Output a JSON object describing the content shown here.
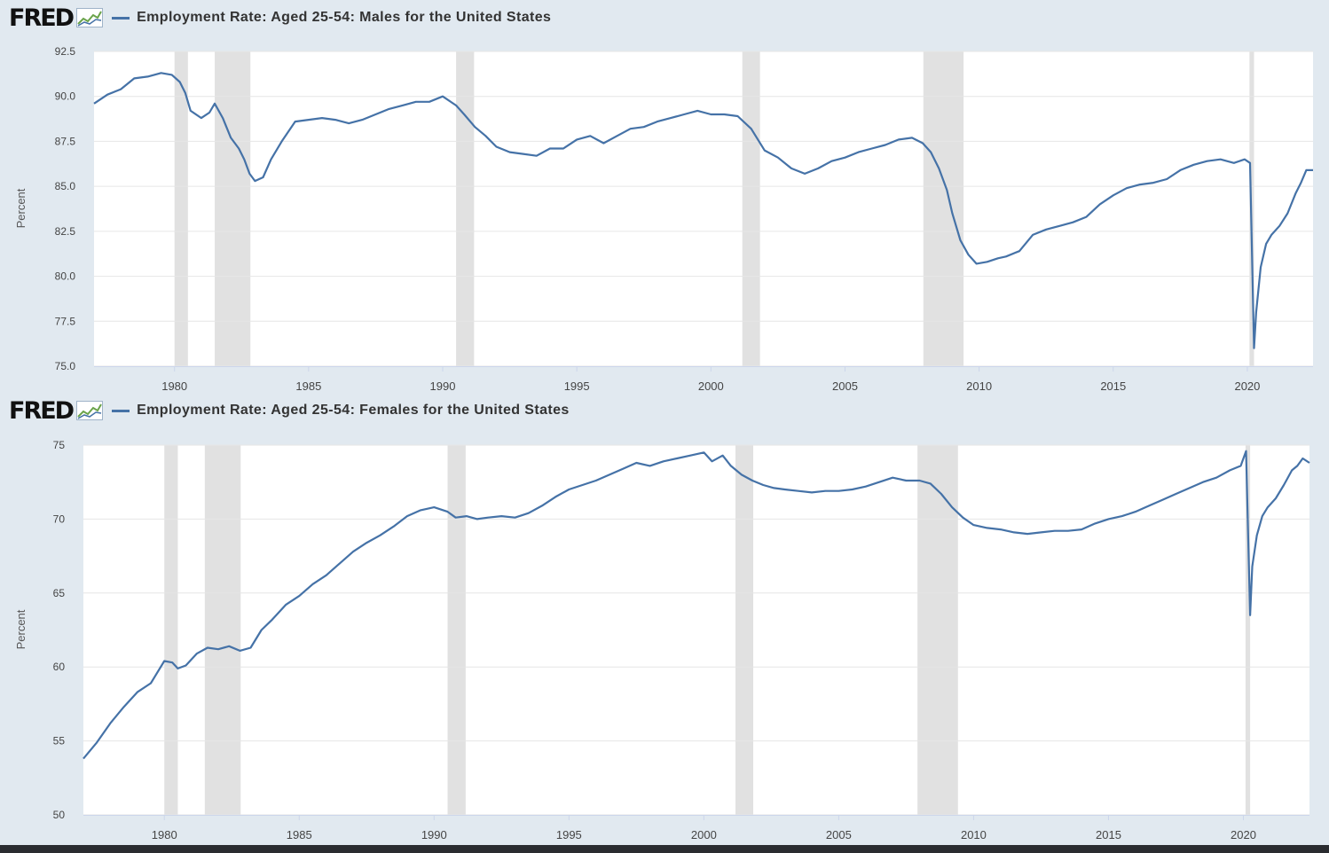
{
  "brand": {
    "logo_text": "FRED"
  },
  "colors": {
    "series": "#4572a7",
    "recession": "#e1e1e1",
    "grid": "#e6e6e6",
    "panel_bg": "#e1e9f0",
    "plot_bg": "#ffffff"
  },
  "recessions": [
    [
      1980.0,
      1980.5
    ],
    [
      1981.5,
      1982.83
    ],
    [
      1990.5,
      1991.17
    ],
    [
      2001.17,
      2001.83
    ],
    [
      2007.92,
      2009.42
    ],
    [
      2020.08,
      2020.25
    ]
  ],
  "chart_data": [
    {
      "type": "line",
      "title": "Employment Rate: Aged 25-54: Males for the United States",
      "xlabel": "",
      "ylabel": "Percent",
      "xlim": [
        1977.0,
        2022.45
      ],
      "ylim": [
        75.0,
        92.5
      ],
      "yticks": [
        "75.0",
        "77.5",
        "80.0",
        "82.5",
        "85.0",
        "87.5",
        "90.0",
        "92.5"
      ],
      "xticks": [
        "1980",
        "1985",
        "1990",
        "1995",
        "2000",
        "2005",
        "2010",
        "2015",
        "2020"
      ],
      "series": [
        {
          "name": "Employment Rate: Aged 25-54: Males for the United States",
          "x": [
            1977.0,
            1977.5,
            1978.0,
            1978.5,
            1979.0,
            1979.5,
            1979.9,
            1980.2,
            1980.4,
            1980.6,
            1981.0,
            1981.3,
            1981.5,
            1981.8,
            1982.1,
            1982.4,
            1982.6,
            1982.8,
            1983.0,
            1983.3,
            1983.6,
            1984.0,
            1984.5,
            1985.0,
            1985.5,
            1986.0,
            1986.5,
            1987.0,
            1987.5,
            1988.0,
            1988.5,
            1989.0,
            1989.5,
            1990.0,
            1990.5,
            1990.8,
            1991.2,
            1991.6,
            1992.0,
            1992.5,
            1993.0,
            1993.5,
            1994.0,
            1994.5,
            1995.0,
            1995.5,
            1996.0,
            1996.5,
            1997.0,
            1997.5,
            1998.0,
            1998.5,
            1999.0,
            1999.5,
            2000.0,
            2000.5,
            2001.0,
            2001.5,
            2002.0,
            2002.5,
            2003.0,
            2003.5,
            2004.0,
            2004.5,
            2005.0,
            2005.5,
            2006.0,
            2006.5,
            2007.0,
            2007.5,
            2007.9,
            2008.2,
            2008.5,
            2008.8,
            2009.0,
            2009.3,
            2009.6,
            2009.9,
            2010.3,
            2010.7,
            2011.0,
            2011.5,
            2012.0,
            2012.5,
            2013.0,
            2013.5,
            2014.0,
            2014.5,
            2015.0,
            2015.5,
            2016.0,
            2016.5,
            2017.0,
            2017.5,
            2018.0,
            2018.5,
            2019.0,
            2019.5,
            2019.9,
            2020.1,
            2020.25,
            2020.33,
            2020.5,
            2020.7,
            2020.9,
            2021.2,
            2021.5,
            2021.8,
            2022.0,
            2022.2,
            2022.45
          ],
          "values": [
            89.6,
            90.1,
            90.4,
            91.0,
            91.1,
            91.3,
            91.2,
            90.8,
            90.2,
            89.2,
            88.8,
            89.1,
            89.6,
            88.8,
            87.7,
            87.1,
            86.5,
            85.7,
            85.3,
            85.5,
            86.5,
            87.5,
            88.6,
            88.7,
            88.8,
            88.7,
            88.5,
            88.7,
            89.0,
            89.3,
            89.5,
            89.7,
            89.7,
            90.0,
            89.5,
            89.0,
            88.3,
            87.8,
            87.2,
            86.9,
            86.8,
            86.7,
            87.1,
            87.1,
            87.6,
            87.8,
            87.4,
            87.8,
            88.2,
            88.3,
            88.6,
            88.8,
            89.0,
            89.2,
            89.0,
            89.0,
            88.9,
            88.2,
            87.0,
            86.6,
            86.0,
            85.7,
            86.0,
            86.4,
            86.6,
            86.9,
            87.1,
            87.3,
            87.6,
            87.7,
            87.4,
            86.9,
            86.0,
            84.8,
            83.5,
            82.0,
            81.2,
            80.7,
            80.8,
            81.0,
            81.1,
            81.4,
            82.3,
            82.6,
            82.8,
            83.0,
            83.3,
            84.0,
            84.5,
            84.9,
            85.1,
            85.2,
            85.4,
            85.9,
            86.2,
            86.4,
            86.5,
            86.3,
            86.5,
            86.3,
            76.0,
            78.0,
            80.5,
            81.8,
            82.3,
            82.8,
            83.5,
            84.6,
            85.2,
            85.9,
            85.9
          ]
        }
      ]
    },
    {
      "type": "line",
      "title": "Employment Rate: Aged 25-54: Females for the United States",
      "xlabel": "",
      "ylabel": "Percent",
      "xlim": [
        1977.0,
        2022.45
      ],
      "ylim": [
        50,
        75
      ],
      "yticks": [
        "50",
        "55",
        "60",
        "65",
        "70",
        "75"
      ],
      "xticks": [
        "1980",
        "1985",
        "1990",
        "1995",
        "2000",
        "2005",
        "2010",
        "2015",
        "2020"
      ],
      "series": [
        {
          "name": "Employment Rate: Aged 25-54: Females for the United States",
          "x": [
            1977.0,
            1977.5,
            1978.0,
            1978.5,
            1979.0,
            1979.5,
            1980.0,
            1980.3,
            1980.5,
            1980.8,
            1981.2,
            1981.6,
            1982.0,
            1982.4,
            1982.8,
            1983.2,
            1983.6,
            1984.0,
            1984.5,
            1985.0,
            1985.5,
            1986.0,
            1986.5,
            1987.0,
            1987.5,
            1988.0,
            1988.5,
            1989.0,
            1989.5,
            1990.0,
            1990.5,
            1990.8,
            1991.2,
            1991.6,
            1992.0,
            1992.5,
            1993.0,
            1993.5,
            1994.0,
            1994.5,
            1995.0,
            1995.5,
            1996.0,
            1996.5,
            1997.0,
            1997.5,
            1998.0,
            1998.5,
            1999.0,
            1999.5,
            2000.0,
            2000.3,
            2000.7,
            2001.0,
            2001.4,
            2001.8,
            2002.2,
            2002.6,
            2003.0,
            2003.5,
            2004.0,
            2004.5,
            2005.0,
            2005.5,
            2006.0,
            2006.5,
            2007.0,
            2007.5,
            2008.0,
            2008.4,
            2008.8,
            2009.2,
            2009.6,
            2010.0,
            2010.5,
            2011.0,
            2011.5,
            2012.0,
            2012.5,
            2013.0,
            2013.5,
            2014.0,
            2014.5,
            2015.0,
            2015.5,
            2016.0,
            2016.5,
            2017.0,
            2017.5,
            2018.0,
            2018.5,
            2019.0,
            2019.5,
            2019.9,
            2020.1,
            2020.25,
            2020.33,
            2020.5,
            2020.7,
            2020.9,
            2021.2,
            2021.5,
            2021.8,
            2022.0,
            2022.2,
            2022.45
          ],
          "values": [
            53.8,
            54.9,
            56.2,
            57.3,
            58.3,
            58.9,
            60.4,
            60.3,
            59.9,
            60.1,
            60.9,
            61.3,
            61.2,
            61.4,
            61.1,
            61.3,
            62.5,
            63.2,
            64.2,
            64.8,
            65.6,
            66.2,
            67.0,
            67.8,
            68.4,
            68.9,
            69.5,
            70.2,
            70.6,
            70.8,
            70.5,
            70.1,
            70.2,
            70.0,
            70.1,
            70.2,
            70.1,
            70.4,
            70.9,
            71.5,
            72.0,
            72.3,
            72.6,
            73.0,
            73.4,
            73.8,
            73.6,
            73.9,
            74.1,
            74.3,
            74.5,
            73.9,
            74.3,
            73.6,
            73.0,
            72.6,
            72.3,
            72.1,
            72.0,
            71.9,
            71.8,
            71.9,
            71.9,
            72.0,
            72.2,
            72.5,
            72.8,
            72.6,
            72.6,
            72.4,
            71.7,
            70.8,
            70.1,
            69.6,
            69.4,
            69.3,
            69.1,
            69.0,
            69.1,
            69.2,
            69.2,
            69.3,
            69.7,
            70.0,
            70.2,
            70.5,
            70.9,
            71.3,
            71.7,
            72.1,
            72.5,
            72.8,
            73.3,
            73.6,
            74.6,
            63.5,
            66.8,
            68.9,
            70.2,
            70.8,
            71.4,
            72.3,
            73.3,
            73.6,
            74.1,
            73.8
          ]
        }
      ]
    }
  ]
}
